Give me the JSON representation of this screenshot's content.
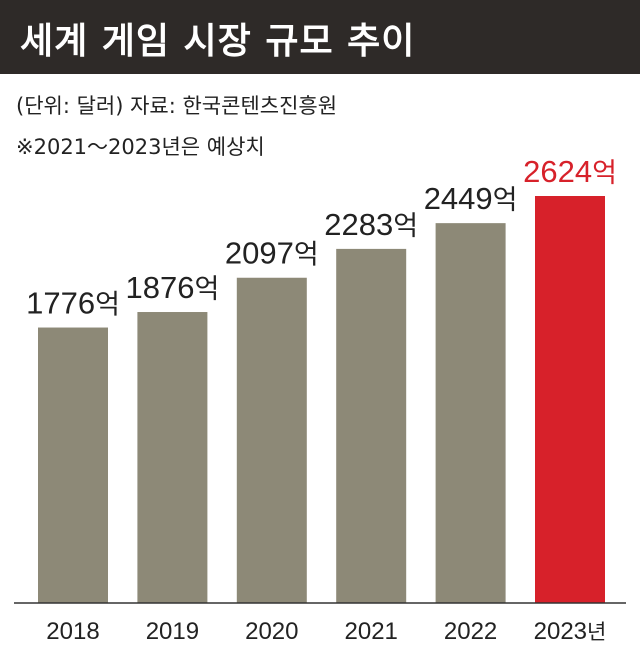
{
  "title": "세계 게임 시장 규모 추이",
  "notes": {
    "unit_source": "(단위: 달러)  자료: 한국콘텐츠진흥원",
    "forecast": "※2021～2023년은 예상치"
  },
  "colors": {
    "header_bg": "#2e2a28",
    "bar": "#8d8977",
    "bar_highlight": "#d7212a",
    "text": "#222222",
    "axis": "#333333"
  },
  "chart_data": {
    "type": "bar",
    "categories": [
      "2018",
      "2019",
      "2020",
      "2021",
      "2022",
      "2023"
    ],
    "category_suffix": [
      "",
      "",
      "",
      "",
      "",
      "년"
    ],
    "values": [
      1776,
      1876,
      2097,
      2283,
      2449,
      2624
    ],
    "value_unit": "억",
    "highlight_index": 5,
    "title": "세계 게임 시장 규모 추이",
    "xlabel": "",
    "ylabel": "",
    "ylim": [
      0,
      2624
    ],
    "grid": false,
    "legend": "none"
  }
}
